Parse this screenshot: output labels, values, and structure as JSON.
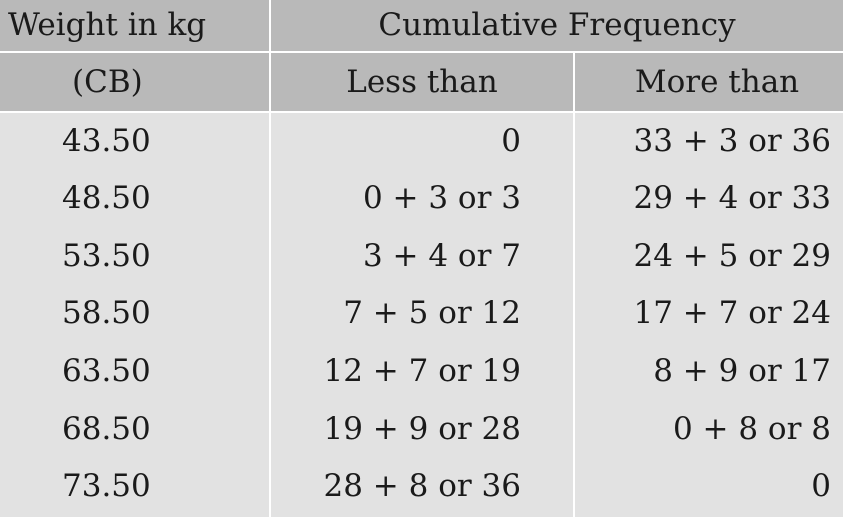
{
  "header": {
    "weight_line1": "Weight in kg",
    "weight_line2": "(CB)",
    "cumulative": "Cumulative Frequency",
    "less_than": "Less than",
    "more_than": "More than"
  },
  "rows": [
    {
      "weight": "43.50",
      "less": "0",
      "more": "33 + 3 or 36"
    },
    {
      "weight": "48.50",
      "less": "0 + 3 or 3",
      "more": "29 + 4 or 33"
    },
    {
      "weight": "53.50",
      "less": "3 + 4 or 7",
      "more": "24 + 5 or 29"
    },
    {
      "weight": "58.50",
      "less": "7 + 5 or 12",
      "more": "17 + 7 or 24"
    },
    {
      "weight": "63.50",
      "less": "12 + 7 or 19",
      "more": "8 + 9 or 17"
    },
    {
      "weight": "68.50",
      "less": "19 + 9 or 28",
      "more": "0 + 8 or 8"
    },
    {
      "weight": "73.50",
      "less": "28 + 8 or 36",
      "more": "0"
    }
  ],
  "colors": {
    "header_bg": "#b9b9b9",
    "body_bg": "#e2e2e2",
    "text": "#1a1a1a",
    "rule": "#ffffff"
  }
}
